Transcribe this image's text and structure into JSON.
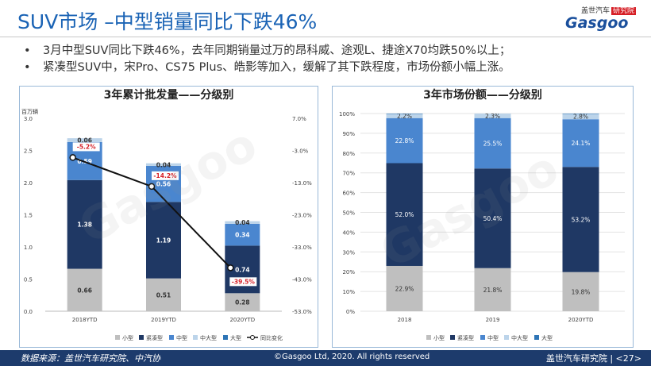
{
  "header": {
    "title": "SUV市场 –中型销量同比下跌46%",
    "logo_top": "盖世汽车",
    "logo_tag": "研究院",
    "logo_main": "Gasgoo"
  },
  "bullets": [
    "3月中型SUV同比下跌46%，去年同期销量过万的昂科威、途观L、捷途X70均跌50%以上；",
    "紧凑型SUV中，宋Pro、CS75 Plus、皓影等加入，缓解了其下跌程度，市场份额小幅上涨。"
  ],
  "bullet_symbol": "•",
  "colors": {
    "title": "#1a63b5",
    "small": "#bfbfbf",
    "compact": "#1f3864",
    "mid": "#4a86cf",
    "midlarge": "#bcd4ea",
    "large": "#2e75b6",
    "footer": "#1d3b6c",
    "growth_label": "#d61f26"
  },
  "chart_data": [
    {
      "type": "bar",
      "title": "3年累计批发量——分级别",
      "unit_label": "百万辆",
      "categories": [
        "2018YTD",
        "2019YTD",
        "2020YTD"
      ],
      "ylim": [
        0,
        3.0
      ],
      "yticks": [
        "0.0",
        "0.5",
        "1.0",
        "1.5",
        "2.0",
        "2.5",
        "3.0"
      ],
      "y2lim": [
        -53.0,
        7.0
      ],
      "y2ticks": [
        "7.0%",
        "-3.0%",
        "-13.0%",
        "-23.0%",
        "-33.0%",
        "-43.0%",
        "-53.0%"
      ],
      "series": [
        {
          "name": "小型",
          "color_key": "small",
          "values": [
            0.66,
            0.51,
            0.28
          ],
          "labels": [
            "0.66",
            "0.51",
            "0.28"
          ]
        },
        {
          "name": "紧凑型",
          "color_key": "compact",
          "values": [
            1.38,
            1.19,
            0.74
          ],
          "labels": [
            "1.38",
            "1.19",
            "0.74"
          ]
        },
        {
          "name": "中型",
          "color_key": "mid",
          "values": [
            0.59,
            0.56,
            0.34
          ],
          "labels": [
            "0.59",
            "0.56",
            "0.34"
          ]
        },
        {
          "name": "中大型",
          "color_key": "midlarge",
          "values": [
            0.06,
            0.04,
            0.04
          ],
          "labels": [
            "0.06",
            "0.04",
            "0.04"
          ]
        },
        {
          "name": "大型",
          "color_key": "large",
          "values": [
            0.0,
            0.0,
            0.0
          ],
          "labels": [
            "",
            "",
            ""
          ]
        }
      ],
      "line": {
        "name": "同比变化",
        "values": [
          -5.2,
          -14.2,
          -39.5
        ],
        "labels": [
          "-5.2%",
          "-14.2%",
          "-39.5%"
        ]
      },
      "legend": "bottom"
    },
    {
      "type": "bar",
      "title": "3年市场份额——分级别",
      "categories": [
        "2018",
        "2019",
        "2020YTD"
      ],
      "ylim": [
        0,
        100
      ],
      "yticks": [
        "0%",
        "10%",
        "20%",
        "30%",
        "40%",
        "50%",
        "60%",
        "70%",
        "80%",
        "90%",
        "100%"
      ],
      "series": [
        {
          "name": "小型",
          "color_key": "small",
          "values": [
            22.9,
            21.8,
            19.8
          ],
          "labels": [
            "22.9%",
            "21.8%",
            "19.8%"
          ]
        },
        {
          "name": "紧凑型",
          "color_key": "compact",
          "values": [
            52.0,
            50.4,
            53.2
          ],
          "labels": [
            "52.0%",
            "50.4%",
            "53.2%"
          ]
        },
        {
          "name": "中型",
          "color_key": "mid",
          "values": [
            22.8,
            25.5,
            24.1
          ],
          "labels": [
            "22.8%",
            "25.5%",
            "24.1%"
          ]
        },
        {
          "name": "中大型",
          "color_key": "midlarge",
          "values": [
            2.2,
            2.3,
            2.8
          ],
          "labels": [
            "2.2%",
            "2.3%",
            "2.8%"
          ]
        },
        {
          "name": "大型",
          "color_key": "large",
          "values": [
            0.1,
            0.0,
            0.1
          ],
          "labels": [
            "",
            "",
            ""
          ]
        }
      ],
      "legend": "bottom"
    }
  ],
  "footer": {
    "source": "数据来源：盖世汽车研究院、中汽协",
    "copyright": "©Gasgoo Ltd, 2020. All rights reserved",
    "page": "盖世汽车研究院 | <27>"
  }
}
